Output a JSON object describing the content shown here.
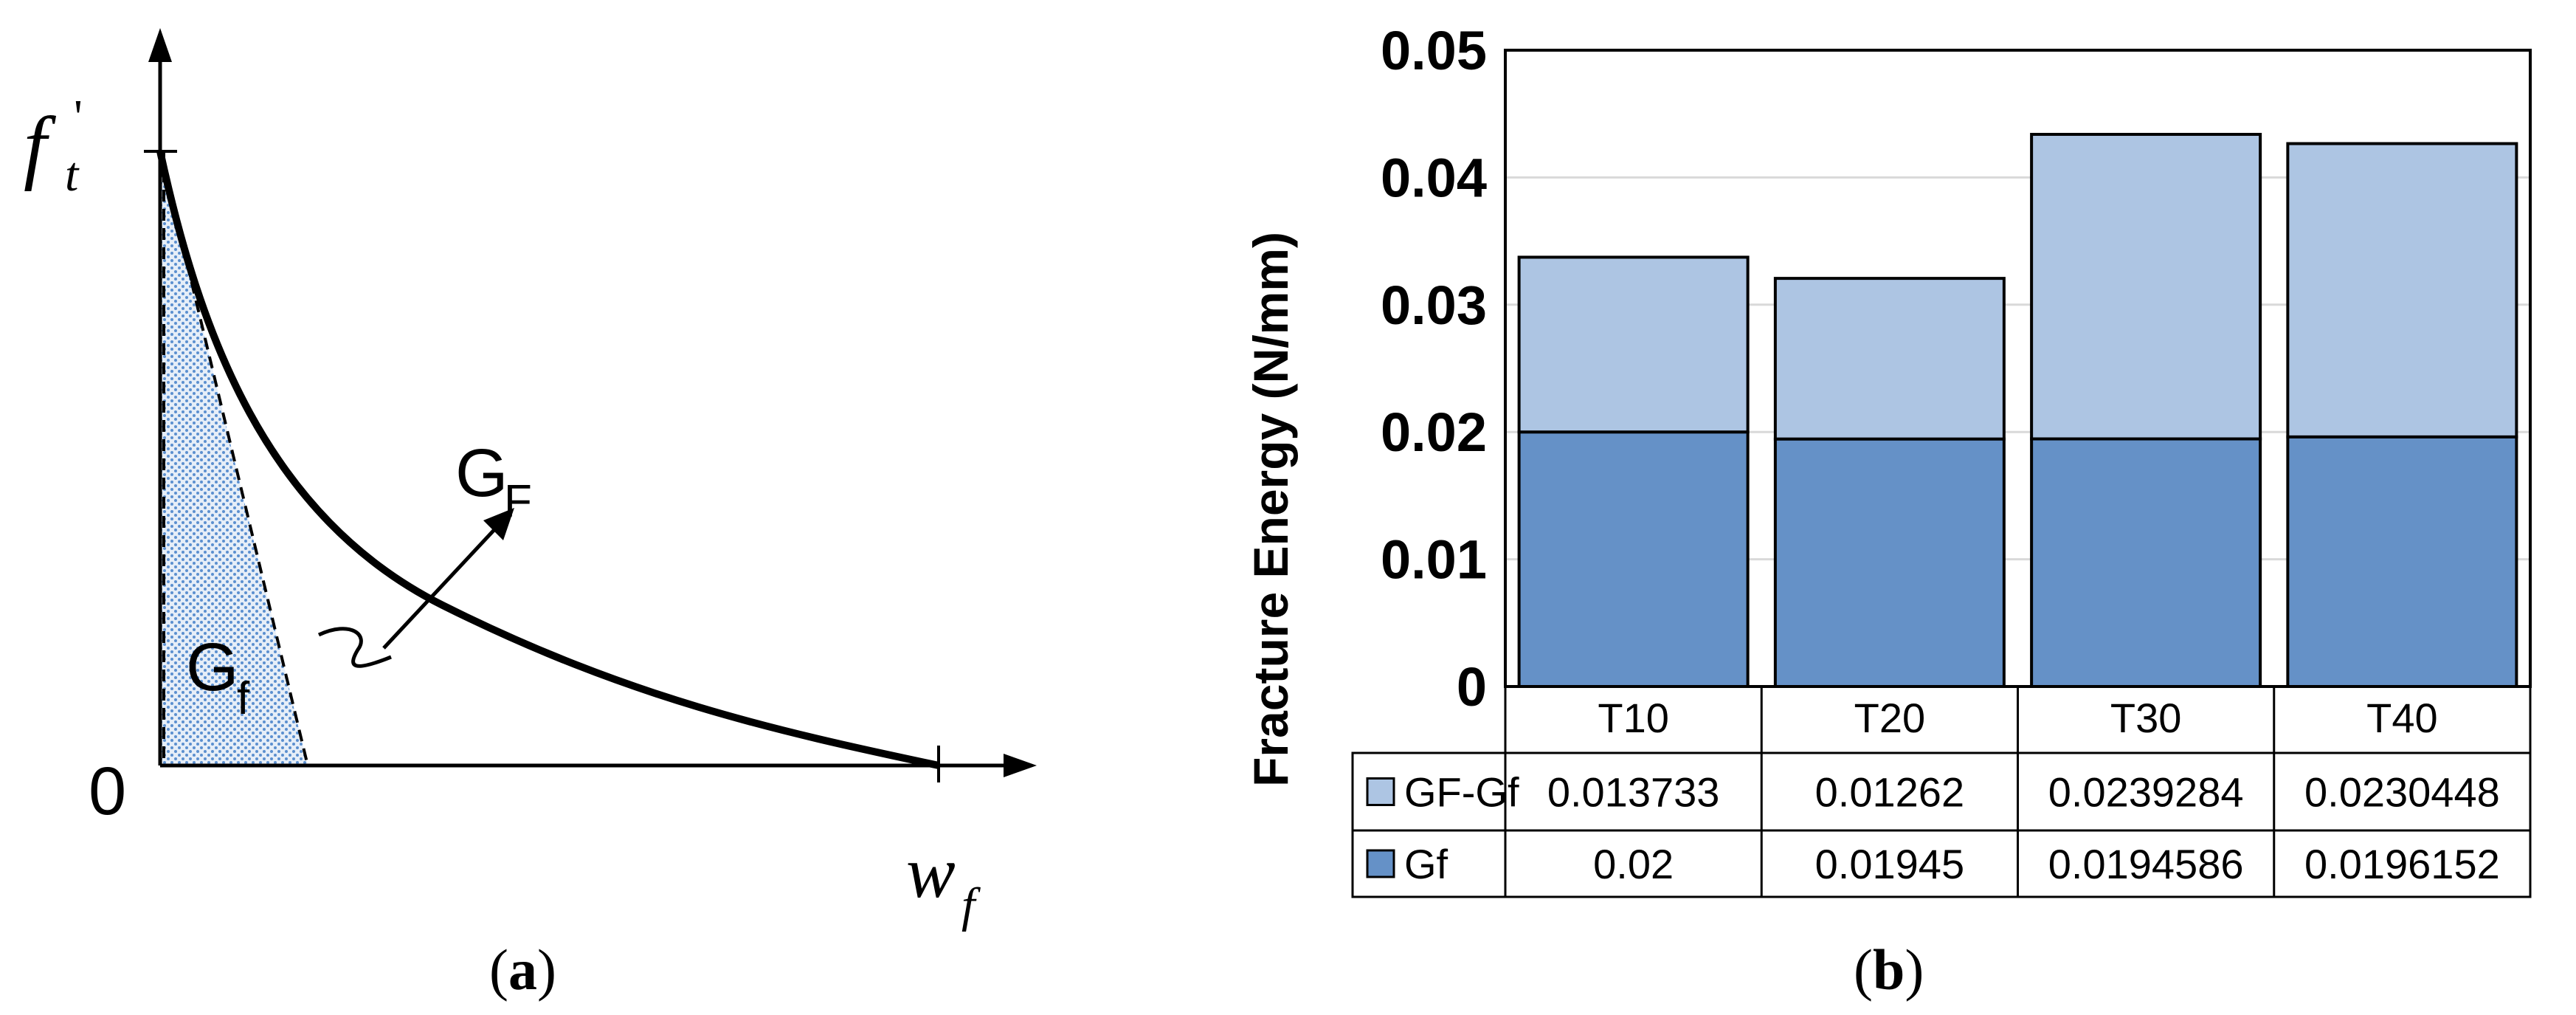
{
  "panel_a": {
    "caption_open": "(",
    "caption_letter": "a",
    "caption_close": ")",
    "y_label_base": "f",
    "y_label_sup": "'",
    "y_label_sub": "t",
    "x_label_base": "w",
    "x_label_sub": "f",
    "origin_label": "0",
    "area_label_big": "G",
    "area_label_big_sub": "F",
    "area_label_small": "G",
    "area_label_small_sub": "f",
    "colors": {
      "curve": "#000000",
      "hatch": "#5b8fcf"
    }
  },
  "panel_b": {
    "caption_open": "(",
    "caption_letter": "b",
    "caption_close": ")",
    "colors": {
      "gf": "#6591c7",
      "gf_diff": "#adc5e3",
      "grid": "#d9d9d9"
    }
  },
  "chart_data": {
    "type": "bar",
    "stacked": true,
    "categories": [
      "T10",
      "T20",
      "T30",
      "T40"
    ],
    "series": [
      {
        "name": "Gf",
        "values": [
          0.02,
          0.01945,
          0.0194586,
          0.0196152
        ],
        "value_labels": [
          "0.02",
          "0.01945",
          "0.0194586",
          "0.0196152"
        ]
      },
      {
        "name": "GF-Gf",
        "values": [
          0.013733,
          0.01262,
          0.0239284,
          0.0230448
        ],
        "value_labels": [
          "0.013733",
          "0.01262",
          "0.0239284",
          "0.0230448"
        ]
      }
    ],
    "ylabel": "Fracture Energy (N/mm)",
    "ylim": [
      0,
      0.05
    ],
    "yticks": [
      0,
      0.01,
      0.02,
      0.03,
      0.04,
      0.05
    ],
    "ytick_labels": [
      "0",
      "0.01",
      "0.02",
      "0.03",
      "0.04",
      "0.05"
    ],
    "grid": true,
    "legend": "data-table"
  }
}
